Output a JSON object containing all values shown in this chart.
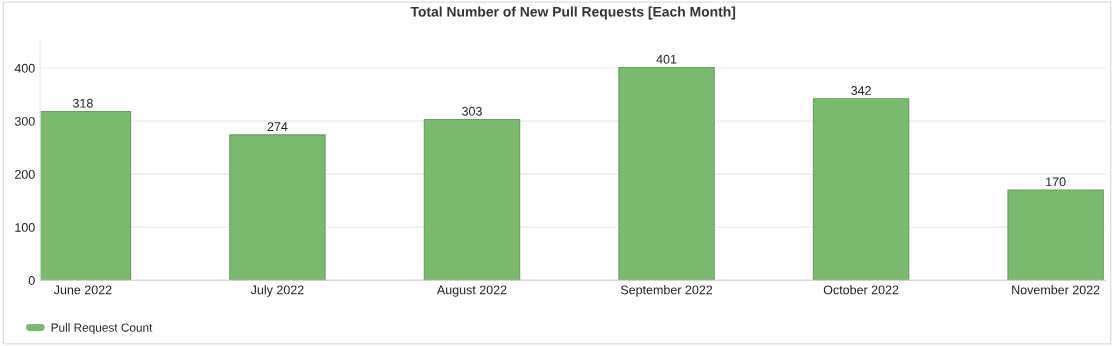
{
  "chart_data": {
    "type": "bar",
    "title": "Total Number of New Pull Requests [Each Month]",
    "categories": [
      "June 2022",
      "July 2022",
      "August 2022",
      "September 2022",
      "October 2022",
      "November 2022"
    ],
    "series": [
      {
        "name": "Pull Request Count",
        "color": "#7aba6e",
        "values": [
          318,
          274,
          303,
          401,
          342,
          170
        ]
      }
    ],
    "ylim": [
      0,
      450
    ],
    "yticks": [
      0,
      100,
      200,
      300,
      400
    ],
    "grid": "y",
    "legend": "bottom left",
    "data_labels": true
  }
}
